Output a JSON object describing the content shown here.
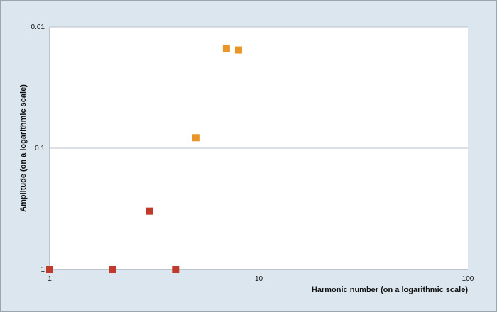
{
  "chart_data": {
    "type": "scatter",
    "xscale": "log",
    "yscale": "log",
    "y_axis_inverted": true,
    "xlim": [
      1,
      100
    ],
    "ylim": [
      1,
      0.01
    ],
    "xlabel": "Harmonic number (on a logarithmic scale)",
    "ylabel": "Amplitude (on a logarithmic scale)",
    "x_ticks": [
      {
        "value": 1,
        "label": "1"
      },
      {
        "value": 10,
        "label": "10"
      },
      {
        "value": 100,
        "label": "100"
      }
    ],
    "y_ticks": [
      {
        "value": 0.01,
        "label": "0.01"
      },
      {
        "value": 0.1,
        "label": "0.1"
      },
      {
        "value": 1,
        "label": "1"
      }
    ],
    "grid": "horizontal",
    "legend": "none",
    "series": [
      {
        "color": "#c0392b",
        "points": [
          {
            "x": 1,
            "y": 1.0
          },
          {
            "x": 2,
            "y": 1.0
          },
          {
            "x": 3,
            "y": 0.33
          },
          {
            "x": 4,
            "y": 1.0
          }
        ]
      },
      {
        "color": "#e8962a",
        "points": [
          {
            "x": 5,
            "y": 0.082
          },
          {
            "x": 7,
            "y": 0.015
          },
          {
            "x": 8,
            "y": 0.0155
          }
        ]
      }
    ]
  }
}
